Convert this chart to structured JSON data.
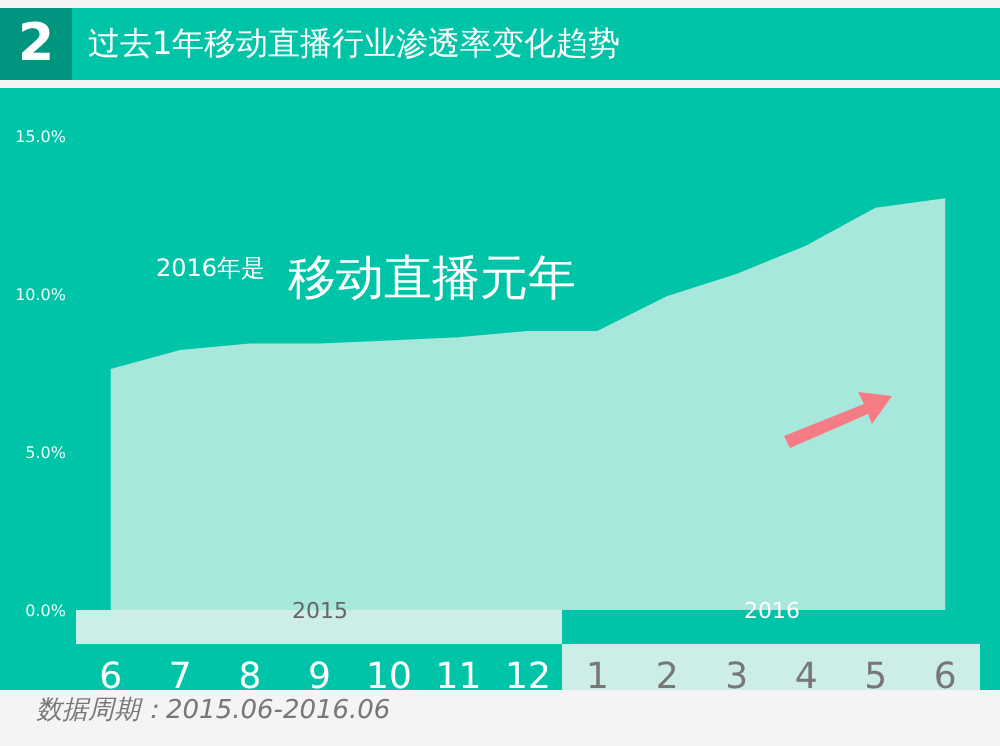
{
  "chart_data": {
    "type": "area",
    "title": "过去1年移动直播行业渗透率变化趋势",
    "categories": [
      "6",
      "7",
      "8",
      "9",
      "10",
      "11",
      "12",
      "1",
      "2",
      "3",
      "4",
      "5",
      "6"
    ],
    "series": [
      {
        "color": "#a8e8dc",
        "values": [
          7.6,
          8.2,
          8.4,
          8.4,
          8.5,
          8.6,
          8.8,
          8.8,
          9.9,
          10.6,
          11.5,
          12.7,
          13.0
        ]
      }
    ],
    "ylim": [
      0,
      15
    ],
    "yticks": [
      {
        "value": 0,
        "label": "0.0%"
      },
      {
        "value": 5,
        "label": "5.0%"
      },
      {
        "value": 10,
        "label": "10.0%"
      },
      {
        "value": 15,
        "label": "15.0%"
      }
    ],
    "grid": false,
    "annotations": [
      "2",
      "2016年是",
      "移动直播元年",
      "2015",
      "2016",
      "数据周期：2015.06-2016.06"
    ]
  }
}
